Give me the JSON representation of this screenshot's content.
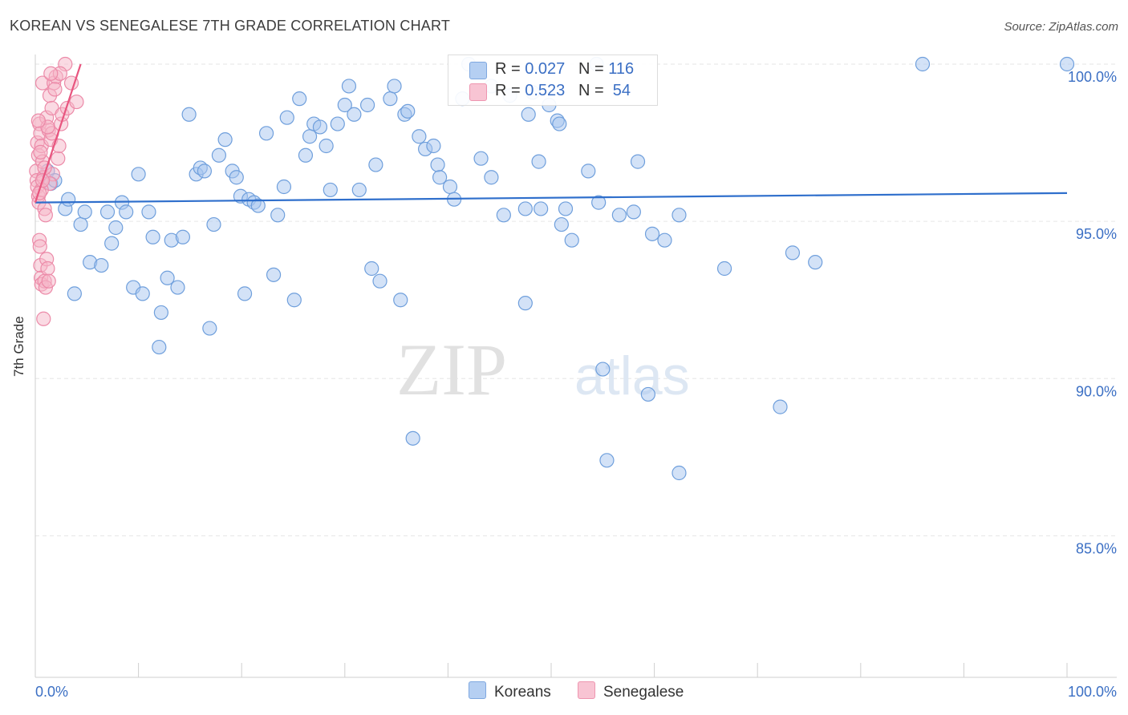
{
  "title": "KOREAN VS SENEGALESE 7TH GRADE CORRELATION CHART",
  "source": "Source: ZipAtlas.com",
  "watermark": {
    "zip": "ZIP",
    "atlas": "atlas"
  },
  "stats": {
    "koreans": {
      "r_label": "R = ",
      "r": "0.027",
      "n_label": "N = ",
      "n": "116"
    },
    "senegalese": {
      "r_label": "R = ",
      "r": "0.523",
      "n_label": "N = ",
      "n": "54"
    }
  },
  "legend": {
    "koreans": "Koreans",
    "senegalese": "Senegalese"
  },
  "colors": {
    "blue_fill": "#a8c6ef",
    "blue_stroke": "#6f9fdc",
    "blue_line": "#2f6fcc",
    "pink_fill": "#f5b5c8",
    "pink_stroke": "#ec8aa8",
    "pink_line": "#e8557f",
    "tick_text": "#3b6fc4",
    "grid": "#e6e6e6"
  },
  "chart_data": {
    "type": "scatter",
    "title": "KOREAN VS SENEGALESE 7TH GRADE CORRELATION CHART",
    "xlabel": "",
    "ylabel": "7th Grade",
    "xlim": [
      0,
      100
    ],
    "ylim": [
      80.5,
      100.5
    ],
    "x_tick_labels": [
      "0.0%",
      "100.0%"
    ],
    "y_ticks": [
      85,
      90,
      95,
      100
    ],
    "y_tick_labels": [
      "85.0%",
      "90.0%",
      "95.0%",
      "100.0%"
    ],
    "grid": true,
    "legend_position": "bottom-center",
    "series": [
      {
        "name": "Koreans",
        "trend": {
          "x": [
            0,
            100
          ],
          "y": [
            95.6,
            95.9
          ]
        },
        "points": [
          [
            1.2,
            96.6
          ],
          [
            1.5,
            96.2
          ],
          [
            1.9,
            96.3
          ],
          [
            2.9,
            95.4
          ],
          [
            3.2,
            95.7
          ],
          [
            3.8,
            92.7
          ],
          [
            4.4,
            94.9
          ],
          [
            4.8,
            95.3
          ],
          [
            5.3,
            93.7
          ],
          [
            6.4,
            93.6
          ],
          [
            7.0,
            95.3
          ],
          [
            7.4,
            94.3
          ],
          [
            7.8,
            94.8
          ],
          [
            8.4,
            95.6
          ],
          [
            8.8,
            95.3
          ],
          [
            9.5,
            92.9
          ],
          [
            10.0,
            96.5
          ],
          [
            10.4,
            92.7
          ],
          [
            11.0,
            95.3
          ],
          [
            11.4,
            94.5
          ],
          [
            12.0,
            91.0
          ],
          [
            12.2,
            92.1
          ],
          [
            12.8,
            93.2
          ],
          [
            13.2,
            94.4
          ],
          [
            13.8,
            92.9
          ],
          [
            14.3,
            94.5
          ],
          [
            14.9,
            98.4
          ],
          [
            15.6,
            96.5
          ],
          [
            16.0,
            96.7
          ],
          [
            16.4,
            96.6
          ],
          [
            16.9,
            91.6
          ],
          [
            17.3,
            94.9
          ],
          [
            17.8,
            97.1
          ],
          [
            18.4,
            97.6
          ],
          [
            19.1,
            96.6
          ],
          [
            19.5,
            96.4
          ],
          [
            19.9,
            95.8
          ],
          [
            20.3,
            92.7
          ],
          [
            20.7,
            95.7
          ],
          [
            21.2,
            95.6
          ],
          [
            21.6,
            95.5
          ],
          [
            22.4,
            97.8
          ],
          [
            23.1,
            93.3
          ],
          [
            23.5,
            95.2
          ],
          [
            24.1,
            96.1
          ],
          [
            24.4,
            98.3
          ],
          [
            25.1,
            92.5
          ],
          [
            25.6,
            98.9
          ],
          [
            26.2,
            97.1
          ],
          [
            26.6,
            97.7
          ],
          [
            27.0,
            98.1
          ],
          [
            27.6,
            98.0
          ],
          [
            28.2,
            97.4
          ],
          [
            28.6,
            96.0
          ],
          [
            29.3,
            98.1
          ],
          [
            30.0,
            98.7
          ],
          [
            30.4,
            99.3
          ],
          [
            30.9,
            98.4
          ],
          [
            31.4,
            96.0
          ],
          [
            32.2,
            98.7
          ],
          [
            32.6,
            93.5
          ],
          [
            33.0,
            96.8
          ],
          [
            33.4,
            93.1
          ],
          [
            34.4,
            98.9
          ],
          [
            34.8,
            99.3
          ],
          [
            35.4,
            92.5
          ],
          [
            35.8,
            98.4
          ],
          [
            36.1,
            98.5
          ],
          [
            36.6,
            88.1
          ],
          [
            37.2,
            97.7
          ],
          [
            37.8,
            97.3
          ],
          [
            38.6,
            97.4
          ],
          [
            39.0,
            96.8
          ],
          [
            39.2,
            96.4
          ],
          [
            40.2,
            96.1
          ],
          [
            40.6,
            95.7
          ],
          [
            41.4,
            98.9
          ],
          [
            42.0,
            100.0
          ],
          [
            43.2,
            97.0
          ],
          [
            44.2,
            96.4
          ],
          [
            44.2,
            99.3
          ],
          [
            45.4,
            95.2
          ],
          [
            46.0,
            99.0
          ],
          [
            47.5,
            95.4
          ],
          [
            47.5,
            92.4
          ],
          [
            47.8,
            98.4
          ],
          [
            48.2,
            99.1
          ],
          [
            48.8,
            96.9
          ],
          [
            49.0,
            95.4
          ],
          [
            49.8,
            98.7
          ],
          [
            50.6,
            98.2
          ],
          [
            50.8,
            98.1
          ],
          [
            51.0,
            94.9
          ],
          [
            51.4,
            95.4
          ],
          [
            52.0,
            94.4
          ],
          [
            53.6,
            96.6
          ],
          [
            54.4,
            100.0
          ],
          [
            54.6,
            95.6
          ],
          [
            55.0,
            90.3
          ],
          [
            55.4,
            87.4
          ],
          [
            56.6,
            95.2
          ],
          [
            58.0,
            95.3
          ],
          [
            58.4,
            96.9
          ],
          [
            59.4,
            89.5
          ],
          [
            59.8,
            94.6
          ],
          [
            61.0,
            94.4
          ],
          [
            62.4,
            87.0
          ],
          [
            62.4,
            95.2
          ],
          [
            66.8,
            93.5
          ],
          [
            72.2,
            89.1
          ],
          [
            73.4,
            94.0
          ],
          [
            75.6,
            93.7
          ],
          [
            86.0,
            100.0
          ],
          [
            100.0,
            100.0
          ]
        ]
      },
      {
        "name": "Senegalese",
        "trend": {
          "x": [
            0,
            4.4
          ],
          "y": [
            95.6,
            100.0
          ]
        },
        "points": [
          [
            0.1,
            96.6
          ],
          [
            0.15,
            96.3
          ],
          [
            0.2,
            96.1
          ],
          [
            0.3,
            95.8
          ],
          [
            0.35,
            95.6
          ],
          [
            0.4,
            94.4
          ],
          [
            0.45,
            94.2
          ],
          [
            0.5,
            93.6
          ],
          [
            0.55,
            93.2
          ],
          [
            0.6,
            93.0
          ],
          [
            0.2,
            97.5
          ],
          [
            0.3,
            97.1
          ],
          [
            0.4,
            98.1
          ],
          [
            0.5,
            97.8
          ],
          [
            0.6,
            97.4
          ],
          [
            0.7,
            96.9
          ],
          [
            0.8,
            96.4
          ],
          [
            0.9,
            95.4
          ],
          [
            1.0,
            95.2
          ],
          [
            1.1,
            93.8
          ],
          [
            1.2,
            93.5
          ],
          [
            0.9,
            93.1
          ],
          [
            1.0,
            92.9
          ],
          [
            0.8,
            91.9
          ],
          [
            1.3,
            97.9
          ],
          [
            1.5,
            97.6
          ],
          [
            1.6,
            97.8
          ],
          [
            1.1,
            98.3
          ],
          [
            1.2,
            98.0
          ],
          [
            0.7,
            99.4
          ],
          [
            1.4,
            99.0
          ],
          [
            1.6,
            98.6
          ],
          [
            1.8,
            99.4
          ],
          [
            2.0,
            99.6
          ],
          [
            2.2,
            97.0
          ],
          [
            2.3,
            97.4
          ],
          [
            2.5,
            98.1
          ],
          [
            2.6,
            98.4
          ],
          [
            2.9,
            100.0
          ],
          [
            3.1,
            98.6
          ],
          [
            3.5,
            99.4
          ],
          [
            4.0,
            98.8
          ],
          [
            1.7,
            96.5
          ],
          [
            1.4,
            96.2
          ],
          [
            0.9,
            96.7
          ],
          [
            0.6,
            96.0
          ],
          [
            1.9,
            99.2
          ],
          [
            2.4,
            99.7
          ],
          [
            1.5,
            99.7
          ],
          [
            0.3,
            98.2
          ],
          [
            0.5,
            97.2
          ],
          [
            1.3,
            93.1
          ],
          [
            0.4,
            95.9
          ],
          [
            0.7,
            96.3
          ]
        ]
      }
    ]
  }
}
